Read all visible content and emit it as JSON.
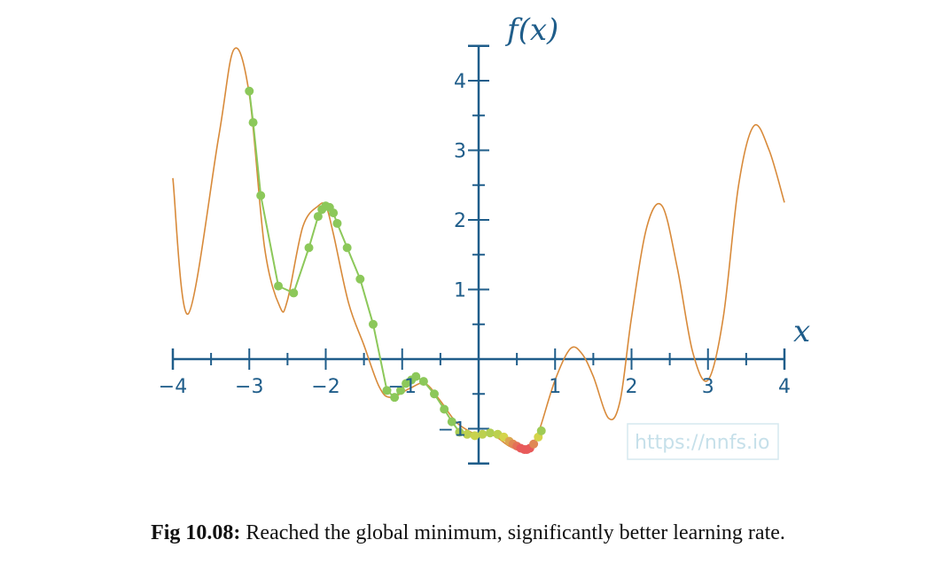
{
  "chart_data": {
    "type": "line",
    "xlabel": "x",
    "ylabel": "f(x)",
    "xlim": [
      -4,
      4
    ],
    "ylim": [
      -1.5,
      4.5
    ],
    "x_ticks": [
      -4,
      -3,
      -2,
      -1,
      1,
      2,
      3,
      4
    ],
    "x_tick_labels": [
      "−4",
      "−3",
      "−2",
      "−1",
      "1",
      "2",
      "3",
      "4"
    ],
    "y_ticks": [
      -1,
      1,
      2,
      3,
      4
    ],
    "y_tick_labels": [
      "−1",
      "1",
      "2",
      "3",
      "4"
    ],
    "function_curve": {
      "x": [
        -4.0,
        -3.8,
        -3.4,
        -3.2,
        -3.0,
        -2.8,
        -2.6,
        -2.5,
        -2.3,
        -2.1,
        -2.0,
        -1.9,
        -1.7,
        -1.5,
        -1.3,
        -1.15,
        -0.9,
        -0.7,
        -0.5,
        -0.3,
        -0.1,
        0.0,
        0.2,
        0.4,
        0.6,
        0.7,
        0.8,
        1.0,
        1.2,
        1.35,
        1.5,
        1.7,
        1.85,
        2.0,
        2.2,
        2.4,
        2.6,
        2.8,
        3.0,
        3.2,
        3.4,
        3.6,
        3.8,
        4.0
      ],
      "y": [
        2.6,
        0.65,
        3.2,
        4.45,
        3.8,
        1.6,
        0.75,
        0.85,
        1.9,
        2.2,
        2.2,
        1.8,
        0.8,
        0.2,
        -0.4,
        -0.55,
        -0.42,
        -0.35,
        -0.6,
        -0.9,
        -1.05,
        -1.08,
        -1.1,
        -1.25,
        -1.32,
        -1.22,
        -1.0,
        -0.3,
        0.15,
        0.08,
        -0.25,
        -0.85,
        -0.6,
        0.6,
        1.9,
        2.2,
        1.3,
        0.1,
        -0.3,
        0.6,
        2.5,
        3.35,
        3.0,
        2.25
      ]
    },
    "descent_steps": {
      "x": [
        -3.0,
        -2.95,
        -2.85,
        -2.62,
        -2.42,
        -2.22,
        -2.1,
        -2.05,
        -2.0,
        -1.95,
        -1.9,
        -1.85,
        -1.72,
        -1.55,
        -1.38,
        -1.2,
        -1.1,
        -1.02,
        -0.95,
        -0.88,
        -0.82,
        -0.72,
        -0.58,
        -0.45,
        -0.35,
        -0.25,
        -0.15,
        -0.05,
        0.05,
        0.15,
        0.25,
        0.33,
        0.4,
        0.45,
        0.5,
        0.55,
        0.6,
        0.63,
        0.67,
        0.72,
        0.78,
        0.82
      ],
      "y": [
        3.85,
        3.4,
        2.35,
        1.05,
        0.95,
        1.6,
        2.05,
        2.15,
        2.2,
        2.18,
        2.1,
        1.95,
        1.6,
        1.15,
        0.5,
        -0.45,
        -0.55,
        -0.45,
        -0.35,
        -0.3,
        -0.25,
        -0.32,
        -0.5,
        -0.72,
        -0.9,
        -1.05,
        -1.08,
        -1.1,
        -1.08,
        -1.06,
        -1.08,
        -1.12,
        -1.18,
        -1.22,
        -1.25,
        -1.28,
        -1.3,
        -1.3,
        -1.28,
        -1.22,
        -1.12,
        -1.03
      ]
    },
    "colors": {
      "axis": "#1f5d8a",
      "curve": "#d88a3a",
      "step_line": "#8cc85a",
      "early_step": "#8cc85a",
      "late_step_yellow": "#d4d44a",
      "final_step_red": "#e85a5a"
    }
  },
  "watermark": "https://nnfs.io",
  "caption": {
    "label": "Fig 10.08:",
    "text": " Reached the global minimum, significantly better learning rate."
  }
}
